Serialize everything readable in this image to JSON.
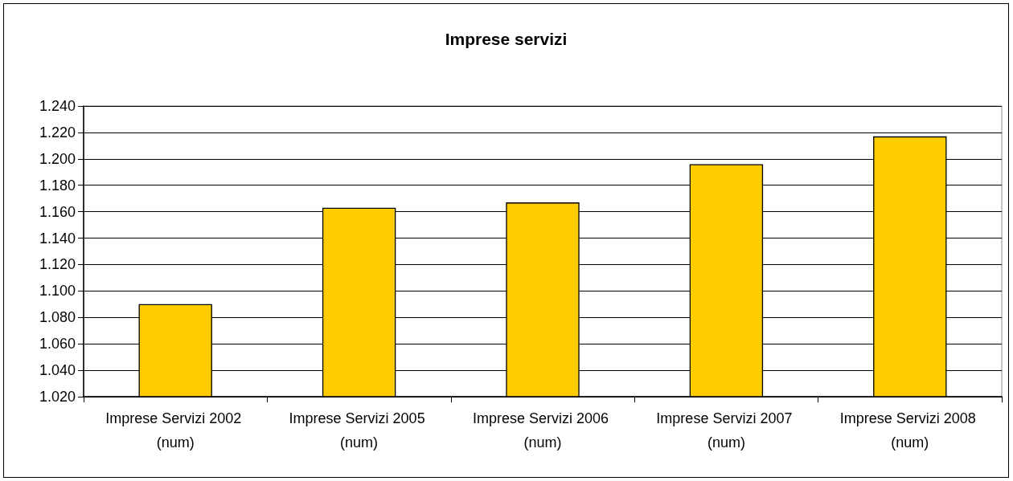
{
  "chart_data": {
    "type": "bar",
    "title": "Imprese servizi",
    "categories": [
      "Imprese Servizi 2002 (num)",
      "Imprese Servizi 2005 (num)",
      "Imprese Servizi 2006 (num)",
      "Imprese Servizi 2007 (num)",
      "Imprese Servizi 2008 (num)"
    ],
    "values": [
      1090,
      1163,
      1167,
      1196,
      1217
    ],
    "color": "#ffcc00",
    "ylim": [
      1020,
      1240
    ],
    "yticks": [
      {
        "value": 1020,
        "label": "1.020"
      },
      {
        "value": 1040,
        "label": "1.040"
      },
      {
        "value": 1060,
        "label": "1.060"
      },
      {
        "value": 1080,
        "label": "1.080"
      },
      {
        "value": 1100,
        "label": "1.100"
      },
      {
        "value": 1120,
        "label": "1.120"
      },
      {
        "value": 1140,
        "label": "1.140"
      },
      {
        "value": 1160,
        "label": "1.160"
      },
      {
        "value": 1180,
        "label": "1.180"
      },
      {
        "value": 1200,
        "label": "1.200"
      },
      {
        "value": 1220,
        "label": "1.220"
      },
      {
        "value": 1240,
        "label": "1.240"
      }
    ],
    "grid": "y"
  }
}
